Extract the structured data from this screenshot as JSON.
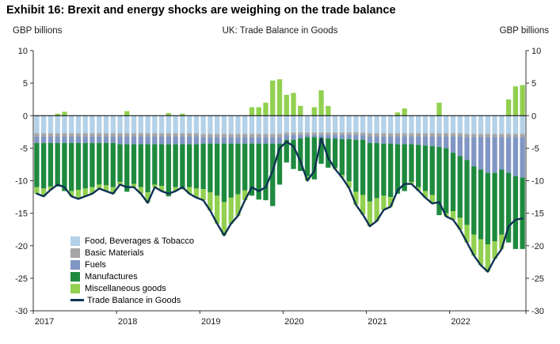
{
  "title": "Exhibit 16: Brexit and energy shocks are weighing on the trade balance",
  "chart_data": {
    "type": "bar",
    "subtype": "stacked-bars-with-line",
    "title": "UK: Trade Balance in Goods",
    "y_unit": "GBP billions",
    "ylim": [
      -30,
      10
    ],
    "y_tick_step": 5,
    "grid": false,
    "legend_position": "lower-left-inside",
    "x_years": [
      "2017",
      "2018",
      "2019",
      "2020",
      "2021",
      "2022"
    ],
    "months": [
      "2017-01",
      "2017-02",
      "2017-03",
      "2017-04",
      "2017-05",
      "2017-06",
      "2017-07",
      "2017-08",
      "2017-09",
      "2017-10",
      "2017-11",
      "2017-12",
      "2018-01",
      "2018-02",
      "2018-03",
      "2018-04",
      "2018-05",
      "2018-06",
      "2018-07",
      "2018-08",
      "2018-09",
      "2018-10",
      "2018-11",
      "2018-12",
      "2019-01",
      "2019-02",
      "2019-03",
      "2019-04",
      "2019-05",
      "2019-06",
      "2019-07",
      "2019-08",
      "2019-09",
      "2019-10",
      "2019-11",
      "2019-12",
      "2020-01",
      "2020-02",
      "2020-03",
      "2020-04",
      "2020-05",
      "2020-06",
      "2020-07",
      "2020-08",
      "2020-09",
      "2020-10",
      "2020-11",
      "2020-12",
      "2021-01",
      "2021-02",
      "2021-03",
      "2021-04",
      "2021-05",
      "2021-06",
      "2021-07",
      "2021-08",
      "2021-09",
      "2021-10",
      "2021-11",
      "2021-12",
      "2022-01",
      "2022-02",
      "2022-03",
      "2022-04",
      "2022-05",
      "2022-06",
      "2022-07",
      "2022-08",
      "2022-09",
      "2022-10",
      "2022-11"
    ],
    "series": [
      {
        "name": "Food, Beverages & Tobacco",
        "color": "#b3d1e8",
        "values": [
          -2.7,
          -2.7,
          -2.7,
          -2.7,
          -2.7,
          -2.7,
          -2.7,
          -2.7,
          -2.7,
          -2.7,
          -2.7,
          -2.7,
          -2.7,
          -2.7,
          -2.7,
          -2.7,
          -2.7,
          -2.7,
          -2.7,
          -2.7,
          -2.7,
          -2.7,
          -2.7,
          -2.7,
          -2.8,
          -2.8,
          -2.8,
          -2.8,
          -2.8,
          -2.8,
          -2.8,
          -2.8,
          -2.8,
          -2.8,
          -2.8,
          -2.8,
          -2.6,
          -2.6,
          -2.6,
          -2.6,
          -2.6,
          -2.6,
          -2.6,
          -2.6,
          -2.6,
          -2.6,
          -2.6,
          -2.6,
          -2.7,
          -2.7,
          -2.7,
          -2.7,
          -2.7,
          -2.7,
          -2.7,
          -2.7,
          -2.7,
          -2.7,
          -2.7,
          -2.7,
          -2.7,
          -2.7,
          -2.8,
          -2.8,
          -2.8,
          -2.8,
          -2.8,
          -2.8,
          -2.8,
          -2.8,
          -2.8
        ]
      },
      {
        "name": "Basic Materials",
        "color": "#a6a6a6",
        "values": [
          -0.5,
          -0.5,
          -0.5,
          -0.5,
          -0.5,
          -0.5,
          -0.5,
          -0.5,
          -0.5,
          -0.5,
          -0.5,
          -0.5,
          -0.5,
          -0.5,
          -0.5,
          -0.5,
          -0.5,
          -0.5,
          -0.5,
          -0.5,
          -0.5,
          -0.5,
          -0.5,
          -0.5,
          -0.5,
          -0.5,
          -0.5,
          -0.5,
          -0.5,
          -0.5,
          -0.5,
          -0.5,
          -0.5,
          -0.5,
          -0.5,
          -0.5,
          -0.4,
          -0.4,
          -0.4,
          -0.4,
          -0.4,
          -0.4,
          -0.4,
          -0.4,
          -0.4,
          -0.4,
          -0.4,
          -0.4,
          -0.5,
          -0.5,
          -0.5,
          -0.5,
          -0.5,
          -0.5,
          -0.5,
          -0.5,
          -0.5,
          -0.5,
          -0.5,
          -0.5,
          -0.5,
          -0.5,
          -0.5,
          -0.5,
          -0.5,
          -0.5,
          -0.5,
          -0.5,
          -0.5,
          -0.5,
          -0.5
        ]
      },
      {
        "name": "Fuels",
        "color": "#8096c4",
        "values": [
          -1.0,
          -1.0,
          -1.0,
          -1.0,
          -1.0,
          -1.0,
          -1.0,
          -1.0,
          -1.0,
          -1.0,
          -1.0,
          -1.0,
          -1.2,
          -1.2,
          -1.2,
          -1.2,
          -1.2,
          -1.2,
          -1.2,
          -1.2,
          -1.2,
          -1.2,
          -1.2,
          -1.2,
          -1.0,
          -1.0,
          -1.0,
          -1.0,
          -1.0,
          -1.0,
          -1.0,
          -1.0,
          -1.0,
          -1.0,
          -1.0,
          -1.0,
          -0.7,
          -0.7,
          -0.5,
          -0.3,
          -0.3,
          -0.4,
          -0.5,
          -0.5,
          -0.6,
          -0.6,
          -0.7,
          -0.7,
          -1.0,
          -1.0,
          -1.1,
          -1.1,
          -1.2,
          -1.2,
          -1.2,
          -1.3,
          -1.4,
          -1.5,
          -1.6,
          -1.8,
          -2.5,
          -3.0,
          -3.5,
          -4.5,
          -5.0,
          -5.5,
          -5.5,
          -5.0,
          -5.5,
          -6.0,
          -6.2
        ]
      },
      {
        "name": "Manufactures",
        "color": "#1e8a3e",
        "values": [
          -6.8,
          -7.0,
          -6.7,
          -6.7,
          -7.4,
          -7.4,
          -7.2,
          -7.0,
          -6.8,
          -6.4,
          -6.5,
          -6.8,
          -5.8,
          -7.3,
          -6.1,
          -6.6,
          -7.4,
          -6.2,
          -6.4,
          -8.0,
          -6.6,
          -6.9,
          -6.6,
          -6.8,
          -7.0,
          -7.5,
          -8.0,
          -9.0,
          -8.3,
          -7.8,
          -7.2,
          -8.0,
          -8.6,
          -8.7,
          -9.6,
          -6.3,
          -3.5,
          -4.5,
          -5.0,
          -6.0,
          -6.5,
          -4.0,
          -4.5,
          -4.5,
          -5.5,
          -6.5,
          -8.0,
          -8.5,
          -9.0,
          -8.5,
          -8.0,
          -8.2,
          -7.6,
          -7.2,
          -5.8,
          -6.5,
          -7.0,
          -7.5,
          -10.5,
          -10.0,
          -9.0,
          -9.5,
          -10.0,
          -10.5,
          -10.7,
          -11.0,
          -10.5,
          -10.0,
          -10.7,
          -11.2,
          -11.0
        ]
      },
      {
        "name": "Miscellaneous goods",
        "color": "#92d050",
        "values": [
          -1.0,
          -1.2,
          -0.5,
          0.3,
          0.6,
          -0.8,
          -1.4,
          -1.2,
          -1.0,
          -0.6,
          -0.9,
          -1.0,
          -0.4,
          0.7,
          -0.5,
          -1.0,
          -1.6,
          -0.4,
          -0.8,
          0.4,
          -0.6,
          0.3,
          -1.0,
          -1.4,
          -1.7,
          -2.8,
          -4.3,
          -5.1,
          -4.0,
          -3.3,
          -1.5,
          1.3,
          1.3,
          2.0,
          5.4,
          5.6,
          3.2,
          3.5,
          1.5,
          -0.7,
          1.3,
          3.9,
          1.5,
          -0.2,
          -0.4,
          -1.0,
          -2.0,
          -3.0,
          -3.8,
          -3.5,
          -2.2,
          -1.5,
          0.5,
          1.1,
          -0.3,
          -0.5,
          -1.0,
          -1.3,
          2.0,
          -0.5,
          -1.3,
          -1.8,
          -2.7,
          -3.2,
          -4.0,
          -4.2,
          -2.7,
          -2.2,
          2.5,
          4.5,
          4.7
        ]
      }
    ],
    "line": {
      "name": "Trade Balance in Goods",
      "color": "#0e3254",
      "values": [
        -12.0,
        -12.4,
        -11.4,
        -10.6,
        -11.0,
        -12.4,
        -12.8,
        -12.4,
        -12.0,
        -11.2,
        -11.6,
        -12.0,
        -10.6,
        -11.0,
        -11.0,
        -12.0,
        -13.4,
        -11.0,
        -11.6,
        -12.0,
        -11.6,
        -11.0,
        -12.0,
        -12.6,
        -13.0,
        -14.6,
        -16.6,
        -18.4,
        -16.6,
        -15.4,
        -13.0,
        -11.0,
        -11.6,
        -11.0,
        -8.5,
        -5.0,
        -4.0,
        -4.7,
        -7.0,
        -10.0,
        -8.5,
        -3.5,
        -6.5,
        -8.2,
        -9.5,
        -11.1,
        -13.7,
        -15.2,
        -17.0,
        -16.2,
        -14.5,
        -14.0,
        -11.5,
        -10.5,
        -10.5,
        -11.5,
        -12.6,
        -13.5,
        -13.3,
        -15.5,
        -16.0,
        -17.5,
        -19.5,
        -21.5,
        -23.0,
        -24.0,
        -22.0,
        -20.5,
        -17.0,
        -16.0,
        -15.8
      ]
    }
  }
}
